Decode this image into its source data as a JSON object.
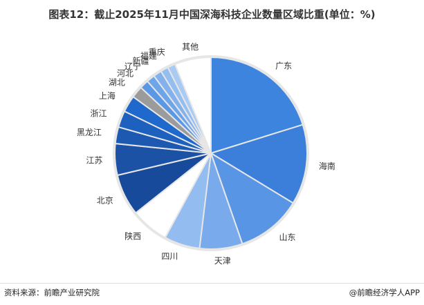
{
  "title": "图表12：截止2025年11月中国深海科技企业数量区域比重(单位：%)",
  "source": "资料来源：前瞻产业研究院",
  "app": "@前瞻经济学人APP",
  "chart_data": {
    "type": "pie",
    "title": "图表12：截止2025年11月中国深海科技企业数量区域比重(单位：%)",
    "unit": "%",
    "start": "top, clockwise",
    "slices": [
      {
        "label": "广东",
        "value": 20.2,
        "color": "#3d84de"
      },
      {
        "label": "海南",
        "value": 13.5,
        "color": "#3b7fdb"
      },
      {
        "label": "山东",
        "value": 11.0,
        "color": "#5895e4"
      },
      {
        "label": "天津",
        "value": 7.2,
        "color": "#78aaec"
      },
      {
        "label": "四川",
        "value": 6.0,
        "color": "#93bcf0"
      },
      {
        "label": "陕西",
        "value": 6.4,
        "color": "#ffffff"
      },
      {
        "label": "北京",
        "value": 7.0,
        "color": "#184a9c"
      },
      {
        "label": "江苏",
        "value": 5.3,
        "color": "#1b52a6"
      },
      {
        "label": "黑龙江",
        "value": 2.8,
        "color": "#1d59b1"
      },
      {
        "label": "浙江",
        "value": 2.8,
        "color": "#1e60bd"
      },
      {
        "label": "上海",
        "value": 2.8,
        "color": "#1f68cc"
      },
      {
        "label": "湖北",
        "value": 2.0,
        "color": "#9b9b9b"
      },
      {
        "label": "河北",
        "value": 1.5,
        "color": "#5a98e6"
      },
      {
        "label": "辽宁",
        "value": 1.4,
        "color": "#6ea5e9"
      },
      {
        "label": "新疆",
        "value": 1.4,
        "color": "#82b1ec"
      },
      {
        "label": "福建",
        "value": 1.3,
        "color": "#94bdf0"
      },
      {
        "label": "重庆",
        "value": 1.3,
        "color": "#a9caf3"
      },
      {
        "label": "其他",
        "value": 6.1,
        "color": "#ffffff"
      }
    ]
  }
}
